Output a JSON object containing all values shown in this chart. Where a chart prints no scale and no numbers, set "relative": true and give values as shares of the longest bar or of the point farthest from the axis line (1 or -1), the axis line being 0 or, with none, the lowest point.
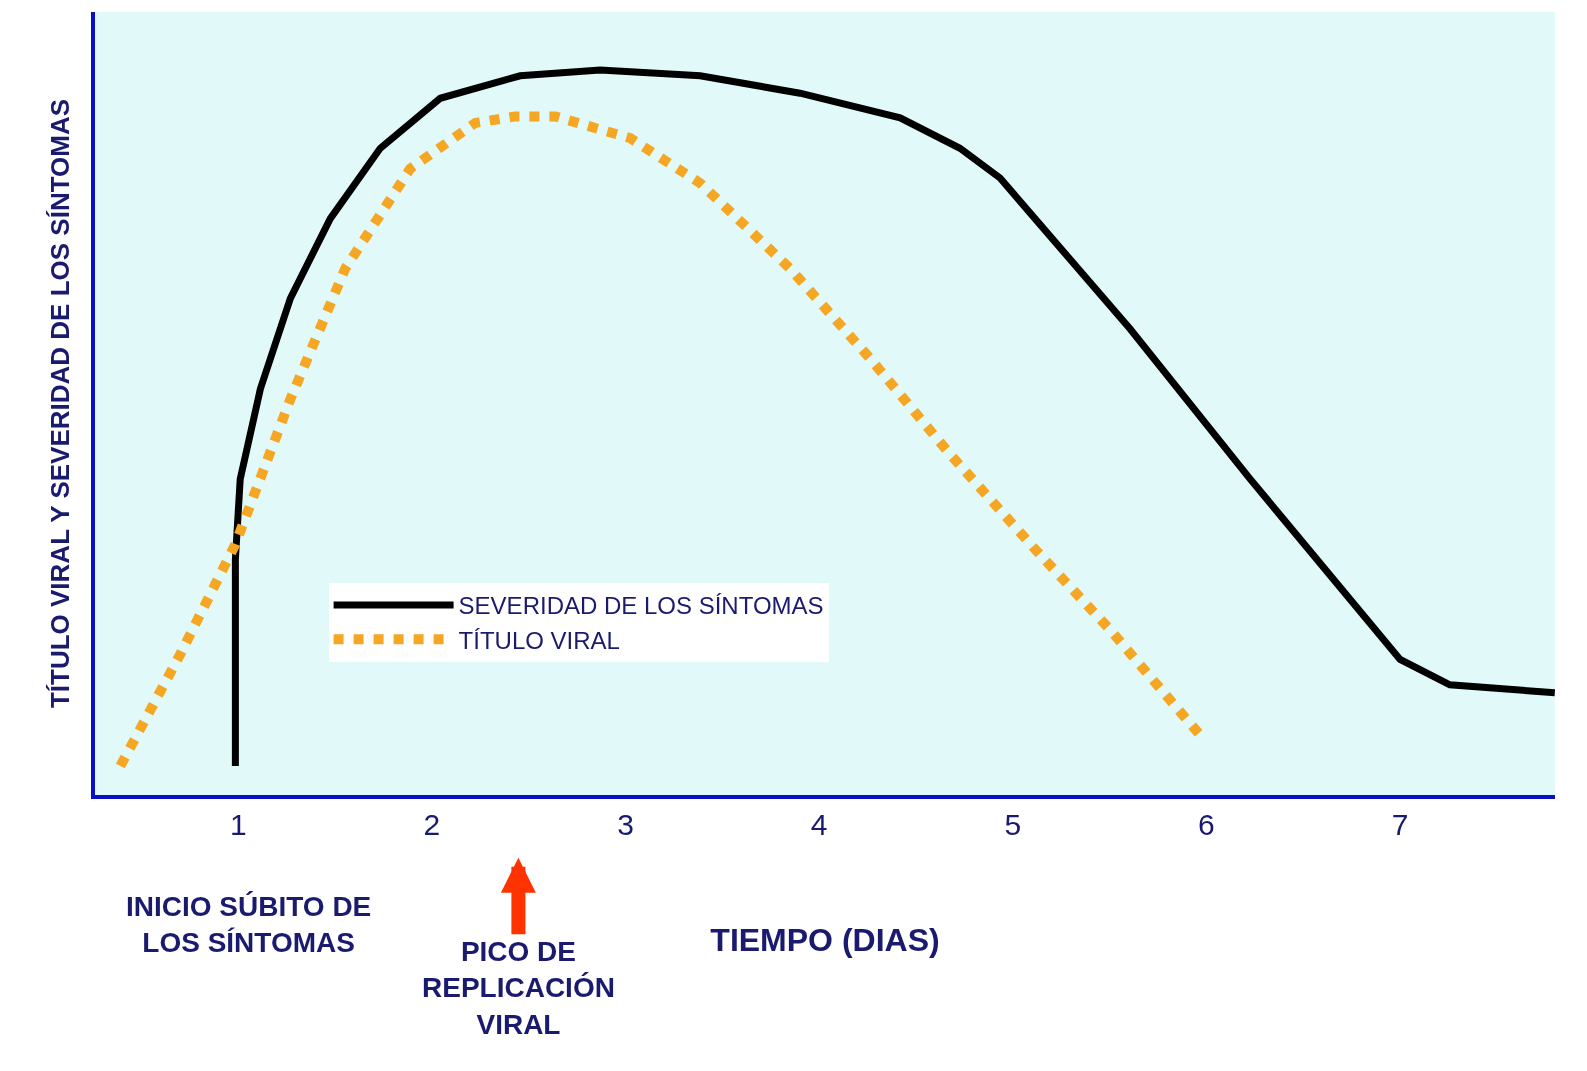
{
  "chart_data": {
    "type": "line",
    "relative": true,
    "xlabel": "TIEMPO (DIAS)",
    "ylabel": "TÍTULO VIRAL Y SEVERIDAD DE LOS SÍNTOMAS",
    "xlim": [
      0.26,
      7.8
    ],
    "xticks": [
      1,
      2,
      3,
      4,
      5,
      6,
      7
    ],
    "grid": false,
    "legend": "bottom left",
    "marker": "none",
    "series": [
      {
        "name": "SEVERIDAD DE LOS SÍNTOMAS",
        "color": "#000000",
        "line_style": "solid",
        "x": [
          0.985,
          0.985,
          1.01,
          1.114,
          1.269,
          1.475,
          1.733,
          2.043,
          2.456,
          2.869,
          3.385,
          3.901,
          4.418,
          4.727,
          4.934,
          5.605,
          6.225,
          7.0,
          7.257,
          7.799
        ],
        "values": [
          0.04,
          0.325,
          0.436,
          0.56,
          0.685,
          0.795,
          0.892,
          0.961,
          0.992,
          1.0,
          0.992,
          0.968,
          0.934,
          0.892,
          0.851,
          0.643,
          0.436,
          0.187,
          0.152,
          0.141
        ]
      },
      {
        "name": "TÍTULO VIRAL",
        "color": "#f5a623",
        "line_style": "dotted",
        "x": [
          0.391,
          0.7,
          0.985,
          1.269,
          1.552,
          1.888,
          2.224,
          2.43,
          2.637,
          3.024,
          3.385,
          3.85,
          4.263,
          4.676,
          5.115,
          5.502,
          5.966
        ],
        "values": [
          0.04,
          0.194,
          0.346,
          0.546,
          0.726,
          0.864,
          0.927,
          0.936,
          0.936,
          0.906,
          0.844,
          0.726,
          0.602,
          0.47,
          0.339,
          0.228,
          0.083
        ]
      }
    ],
    "annotations": [
      "INICIO SÚBITO DE\nLOS SÍNTOMAS",
      "PICO DE\nREPLICACIÓN\nVIRAL"
    ]
  }
}
